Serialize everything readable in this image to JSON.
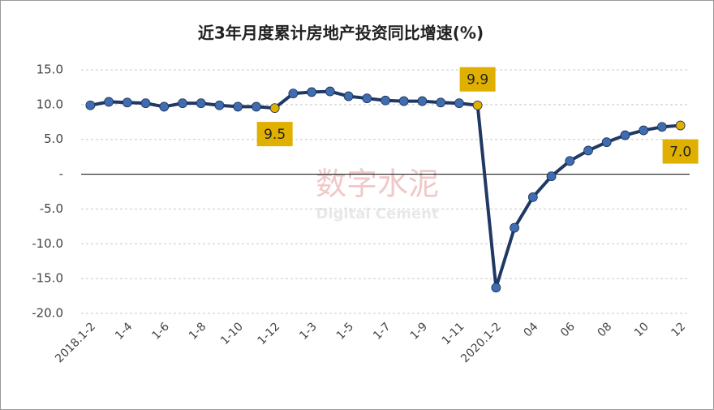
{
  "chart_data": {
    "type": "line",
    "title": "近3年月度累计房地产投资同比增速(%)",
    "watermark": "数字水泥",
    "watermark_subtitle": "Digital Cement",
    "categories": [
      "2018.1-2",
      null,
      "1-4",
      null,
      "1-6",
      null,
      "1-8",
      null,
      "1-10",
      null,
      "1-12",
      null,
      "1-3",
      null,
      "1-5",
      null,
      "1-7",
      null,
      "1-9",
      null,
      "1-11",
      null,
      "2020.1-2",
      null,
      "04",
      null,
      "06",
      null,
      "08",
      null,
      "10",
      null,
      "12"
    ],
    "series": [
      {
        "color": "#1f3864",
        "marker_color": "#3f6db0",
        "highlight_color": "#e0b000",
        "values": [
          9.9,
          10.4,
          10.3,
          10.2,
          9.7,
          10.2,
          10.2,
          9.9,
          9.7,
          9.7,
          9.5,
          11.6,
          11.8,
          11.9,
          11.2,
          10.9,
          10.6,
          10.5,
          10.5,
          10.3,
          10.2,
          9.9,
          -16.3,
          -7.7,
          -3.3,
          -0.3,
          1.9,
          3.4,
          4.6,
          5.6,
          6.3,
          6.8,
          7.0
        ],
        "value_labels": [
          null,
          null,
          null,
          null,
          null,
          null,
          null,
          null,
          null,
          null,
          "9.5",
          null,
          null,
          null,
          null,
          null,
          null,
          null,
          null,
          null,
          null,
          "9.9",
          null,
          null,
          null,
          null,
          null,
          null,
          null,
          null,
          null,
          null,
          "7.0"
        ]
      }
    ],
    "ylim": [
      -20,
      15
    ],
    "yticks": [
      {
        "value": -20,
        "label": "-20.0"
      },
      {
        "value": -15,
        "label": "-15.0"
      },
      {
        "value": -10,
        "label": "-10.0"
      },
      {
        "value": -5,
        "label": "-5.0"
      },
      {
        "value": 0,
        "label": "-"
      },
      {
        "value": 5,
        "label": "5.0"
      },
      {
        "value": 10,
        "label": "10.0"
      },
      {
        "value": 15,
        "label": "15.0"
      }
    ],
    "grid": true
  }
}
